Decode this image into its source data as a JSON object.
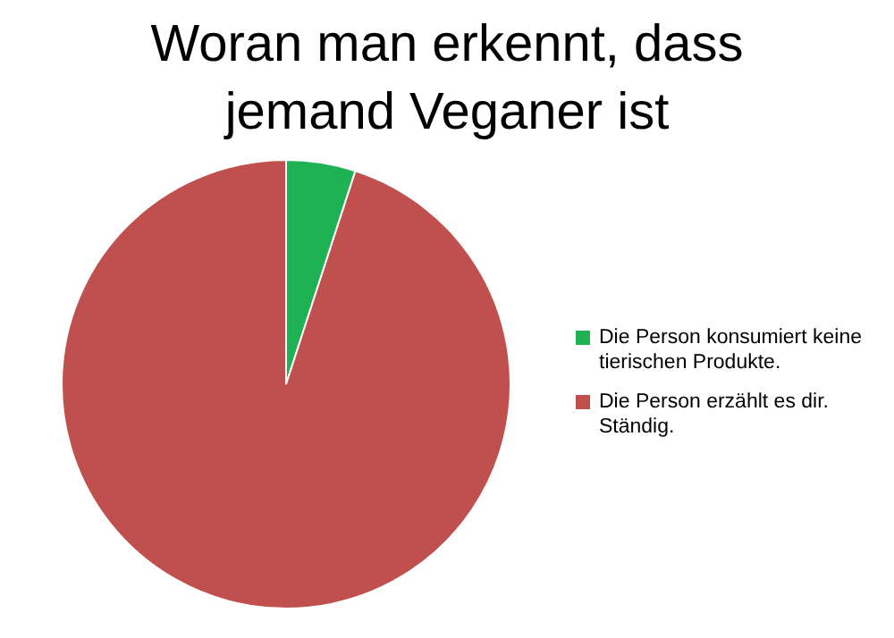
{
  "chart_data": {
    "type": "pie",
    "title": "Woran man erkennt, dass jemand Veganer ist",
    "categories": [
      "Die Person konsumiert keine tierischen Produkte.",
      "Die Person erzählt es dir. Ständig."
    ],
    "values": [
      5,
      95
    ],
    "colors": [
      "#1fb255",
      "#c0504d"
    ],
    "legend": "right"
  }
}
